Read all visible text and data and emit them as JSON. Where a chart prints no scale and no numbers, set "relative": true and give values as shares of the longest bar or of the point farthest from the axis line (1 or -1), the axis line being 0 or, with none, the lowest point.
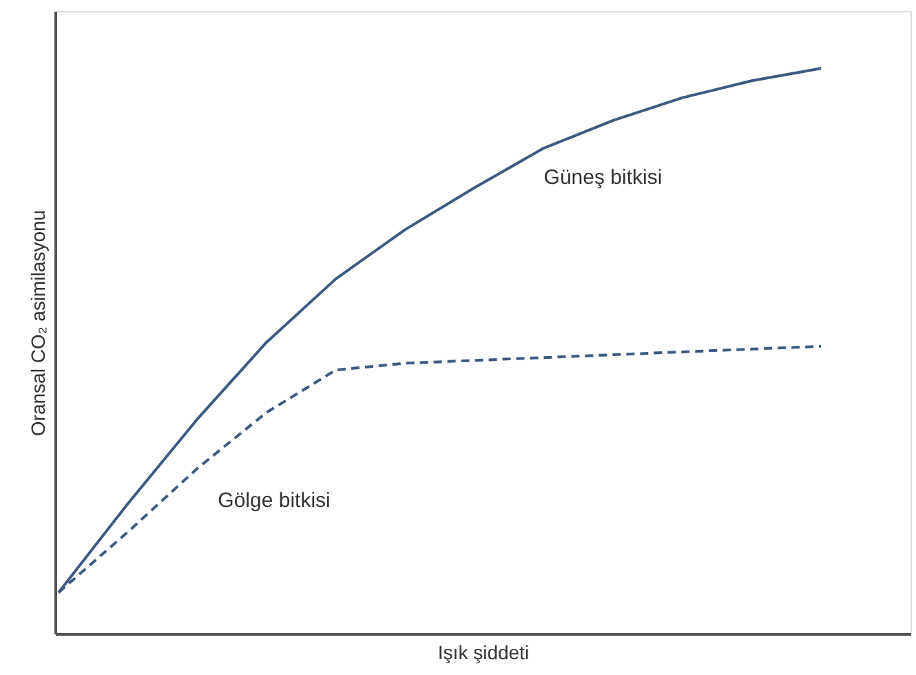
{
  "chart_data": {
    "type": "line",
    "relative": true,
    "xlabel": "Işık şiddeti",
    "ylabel": "Oransal CO₂ asimilasyonu",
    "categories": [
      null,
      null,
      null,
      null,
      null,
      null,
      null,
      null,
      null,
      null,
      null,
      null
    ],
    "series": [
      {
        "name": "Güneş bitkisi",
        "color": "#3d5a80",
        "line_style": "solid",
        "values": [
          0.074,
          0.231,
          0.38,
          0.516,
          0.628,
          0.715,
          0.789,
          0.859,
          0.908,
          0.948,
          0.978,
          1
        ]
      },
      {
        "name": "Gölge bitkisi",
        "color": "#3d5a80",
        "line_style": "dashed",
        "values": [
          0.074,
          0.181,
          0.293,
          0.392,
          0.467,
          0.479,
          0.484,
          0.489,
          0.494,
          0.499,
          0.504,
          0.509
        ]
      }
    ]
  }
}
